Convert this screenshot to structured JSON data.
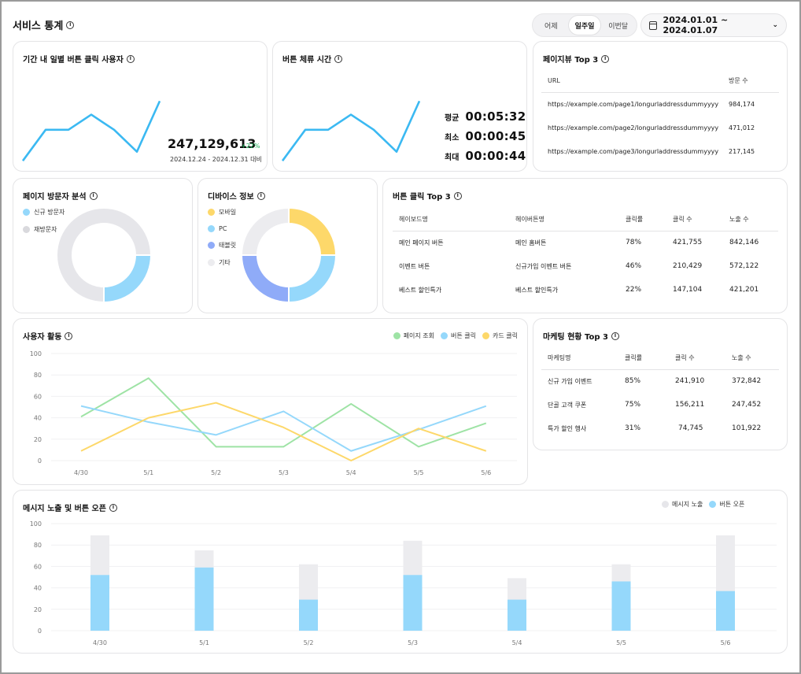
{
  "header": {
    "title": "서비스 통계",
    "periods": [
      "어제",
      "일주일",
      "이번달"
    ],
    "active_period": "일주일",
    "date_range": "2024.01.01 ~ 2024.01.07"
  },
  "click_users": {
    "title": "기간 내 일별 버튼 클릭 사용자",
    "total": "247,129,613",
    "delta": "+22%",
    "compare": "2024.12.24 - 2024.12.31 대비",
    "line": [
      0.05,
      0.46,
      0.46,
      0.66,
      0.46,
      0.17,
      0.84
    ]
  },
  "stay_time": {
    "title": "버튼 체류 시간",
    "rows": [
      {
        "label": "평균",
        "value": "00:05:32"
      },
      {
        "label": "최소",
        "value": "00:00:45"
      },
      {
        "label": "최대",
        "value": "00:00:44"
      }
    ],
    "line": [
      0.05,
      0.46,
      0.46,
      0.66,
      0.46,
      0.17,
      0.84
    ]
  },
  "pageview": {
    "title": "페이지뷰 Top 3",
    "headers": [
      "URL",
      "방문 수"
    ],
    "rows": [
      [
        "https://example.com/page1/longurladdressdummyyyy",
        "984,174"
      ],
      [
        "https://example.com/page2/longurladdressdummyyyy",
        "471,012"
      ],
      [
        "https://example.com/page3/longurladdressdummyyyy",
        "217,145"
      ]
    ]
  },
  "visitors": {
    "title": "페이지 방문자 분석",
    "legend": [
      "신규 방문자",
      "재방문자"
    ],
    "colors": [
      "#95d8fb",
      "#e6e6ea"
    ],
    "values": [
      25,
      75
    ]
  },
  "device": {
    "title": "디바이스 정보",
    "legend": [
      "모바일",
      "PC",
      "태블릿",
      "기타"
    ],
    "colors": [
      "#fdd86a",
      "#95d8fb",
      "#8fabf8",
      "#ececef"
    ],
    "values": [
      25,
      25,
      25,
      25
    ]
  },
  "btn_click": {
    "title": "버튼 클릭 Top 3",
    "headers": [
      "헤이보드명",
      "헤이버튼명",
      "클릭률",
      "클릭 수",
      "노출 수"
    ],
    "rows": [
      [
        "메인 페이지 버튼",
        "메인 홈버튼",
        "78%",
        "421,755",
        "842,146"
      ],
      [
        "이벤트 버튼",
        "신규가입 이벤트 버튼",
        "46%",
        "210,429",
        "572,122"
      ],
      [
        "베스트 할인특가",
        "베스트 할인특가",
        "22%",
        "147,104",
        "421,201"
      ]
    ]
  },
  "activity": {
    "title": "사용자 활동",
    "legend": [
      "페이지 조회",
      "버튼 클릭",
      "카드 클릭"
    ],
    "colors": [
      "#9ee3a5",
      "#95d8fb",
      "#fdd86a"
    ],
    "chart_data": {
      "type": "line",
      "categories": [
        "4/30",
        "5/1",
        "5/2",
        "5/3",
        "5/4",
        "5/5",
        "5/6"
      ],
      "ylim": [
        0,
        100
      ],
      "yticks": [
        "0",
        "20",
        "40",
        "60",
        "80",
        "100"
      ],
      "series": [
        {
          "name": "페이지 조회",
          "values": [
            41,
            77,
            13,
            13,
            53,
            13,
            35
          ]
        },
        {
          "name": "버튼 클릭",
          "values": [
            51,
            36,
            24,
            46,
            9,
            29,
            51
          ]
        },
        {
          "name": "카드 클릭",
          "values": [
            9,
            40,
            54,
            31,
            0,
            30,
            9
          ]
        }
      ]
    }
  },
  "marketing": {
    "title": "마케팅 현황 Top 3",
    "headers": [
      "마케팅명",
      "클릭률",
      "클릭 수",
      "노출 수"
    ],
    "rows": [
      [
        "신규 가입 이벤트",
        "85%",
        "241,910",
        "372,842"
      ],
      [
        "단골 고객 쿠폰",
        "75%",
        "156,211",
        "247,452"
      ],
      [
        "특가 할인 행사",
        "31%",
        "74,745",
        "101,922"
      ]
    ]
  },
  "message": {
    "title": "메시지 노출 및 버튼 오픈",
    "legend": [
      "메시지 노출",
      "버튼 오픈"
    ],
    "colors": [
      "#ececef",
      "#95d8fb"
    ],
    "chart_data": {
      "type": "bar",
      "categories": [
        "4/30",
        "5/1",
        "5/2",
        "5/3",
        "5/4",
        "5/5",
        "5/6"
      ],
      "ylim": [
        0,
        100
      ],
      "yticks": [
        "0",
        "20",
        "40",
        "60",
        "80",
        "100"
      ],
      "series": [
        {
          "name": "메시지 노출",
          "values": [
            89,
            75,
            62,
            84,
            49,
            62,
            89
          ]
        },
        {
          "name": "버튼 오픈",
          "values": [
            52,
            59,
            29,
            52,
            29,
            46,
            37
          ]
        }
      ]
    }
  }
}
